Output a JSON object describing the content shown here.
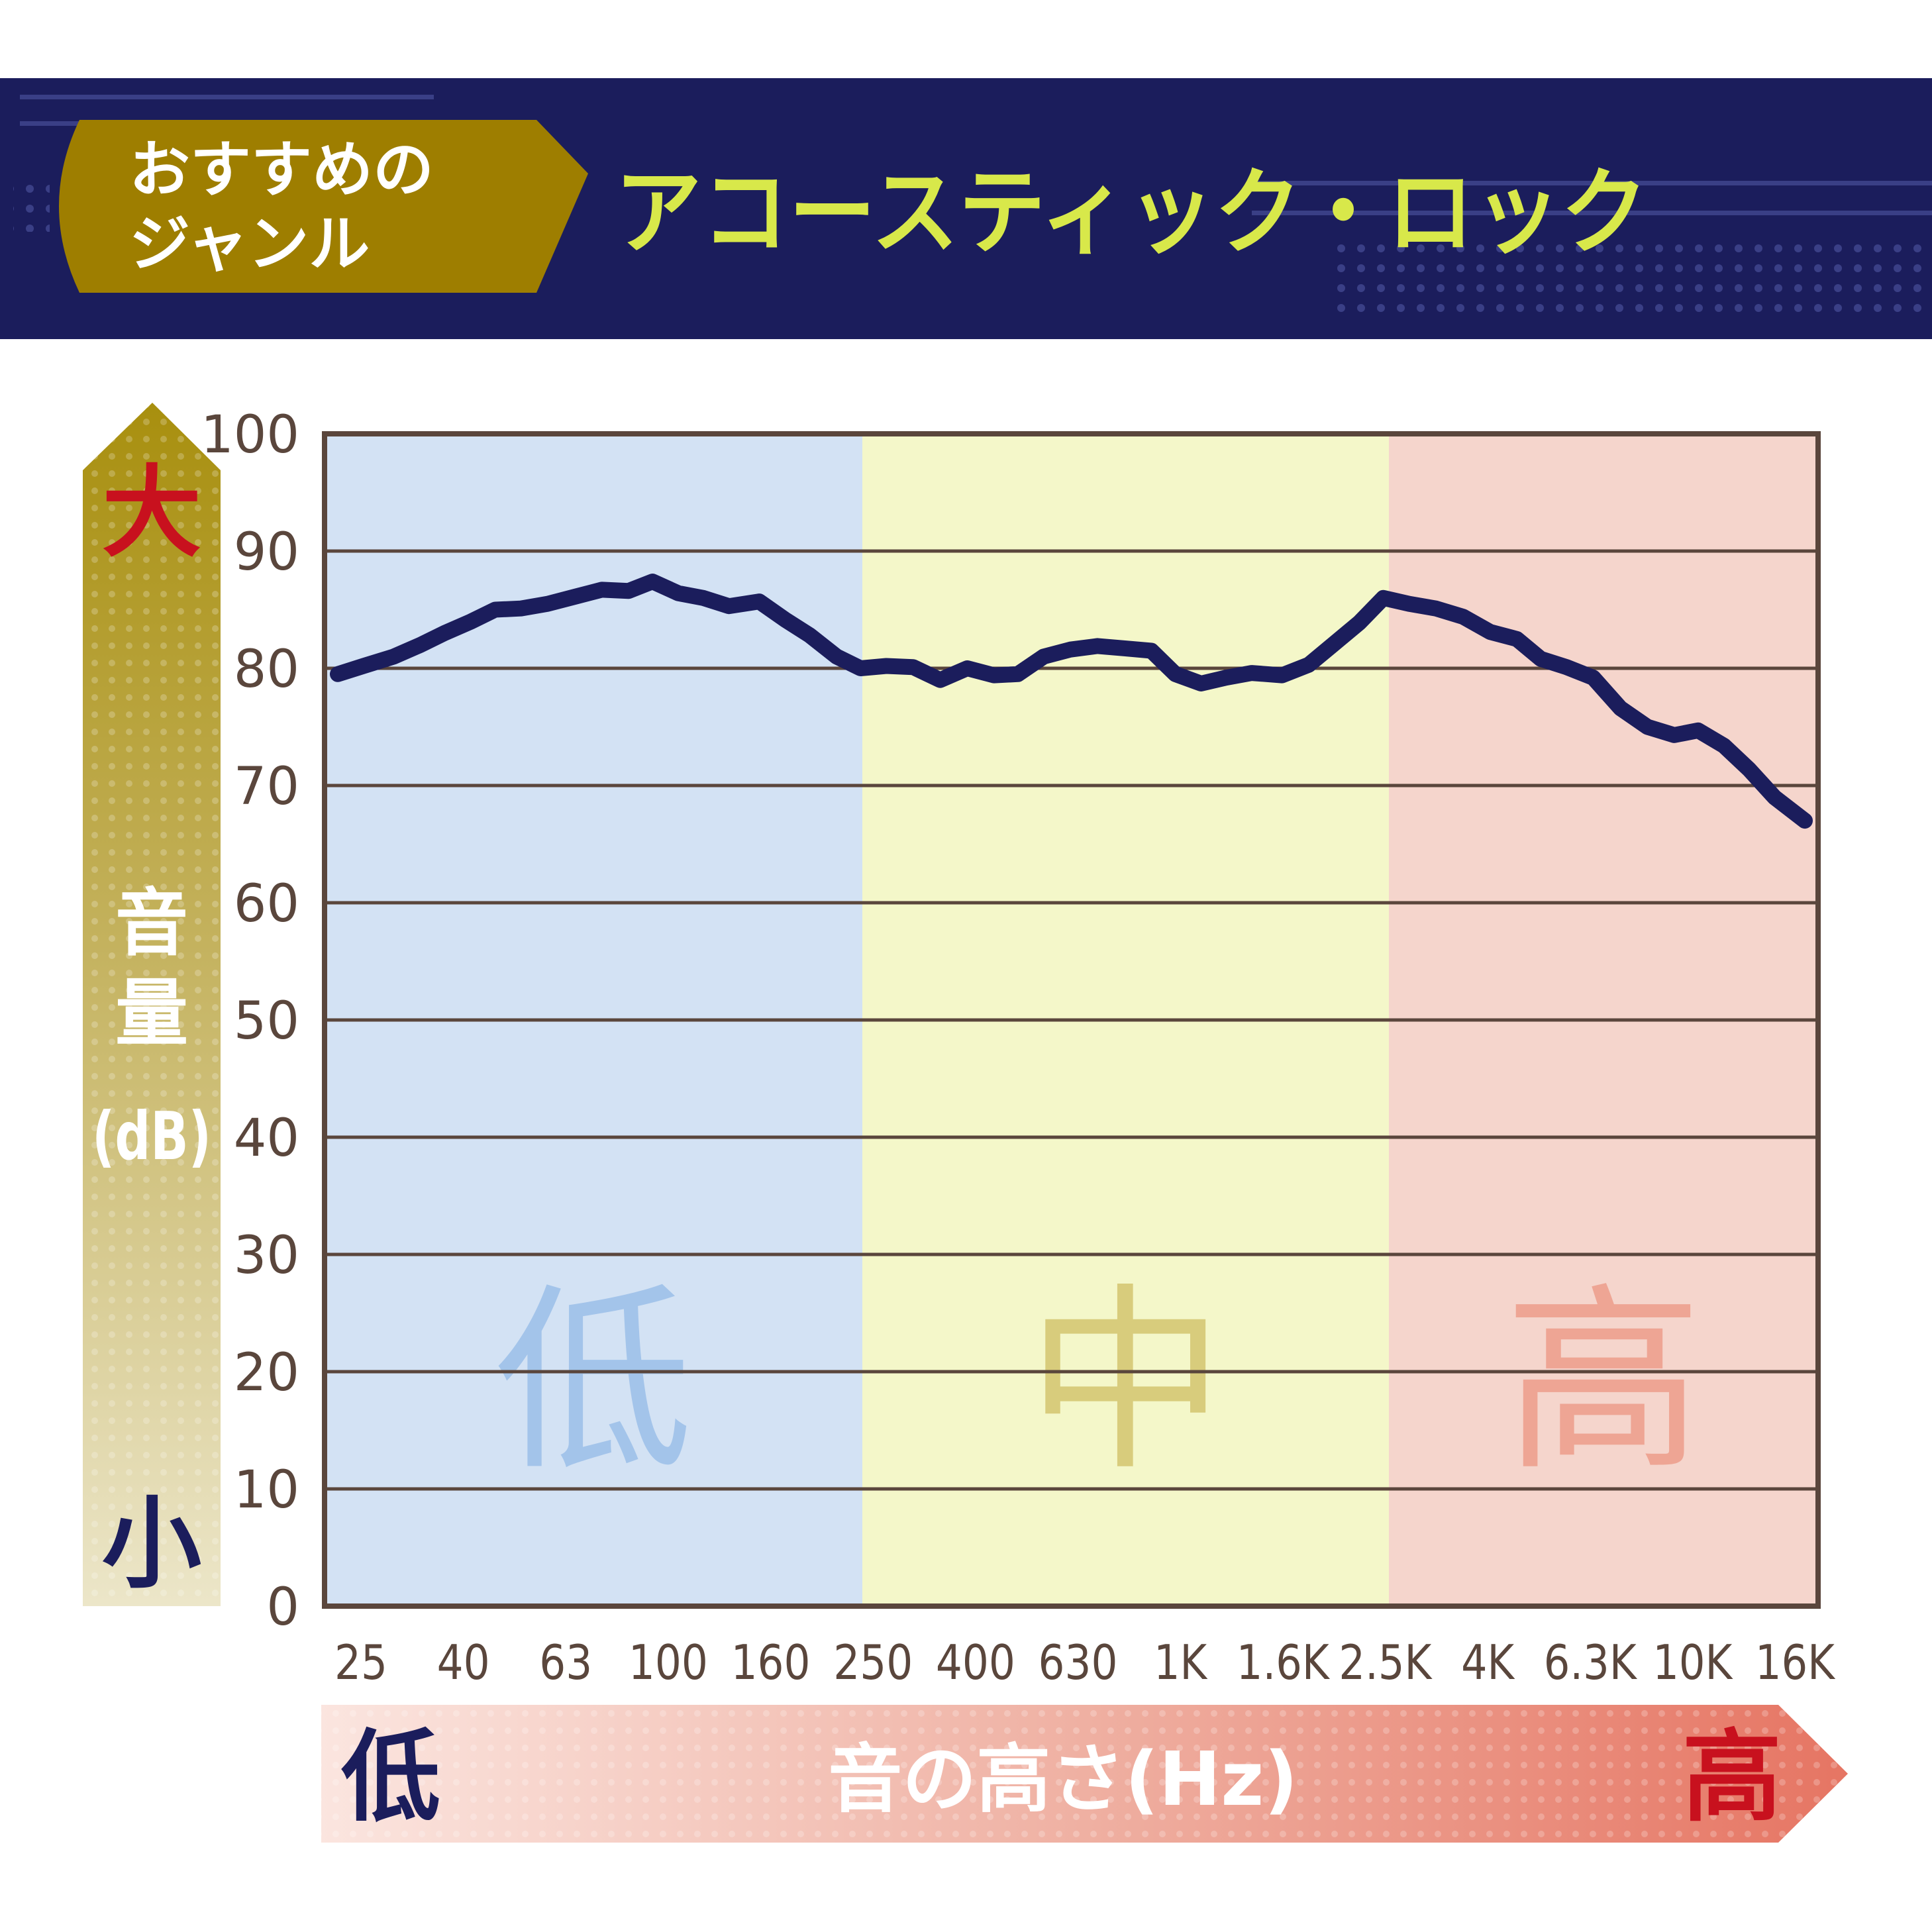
{
  "header": {
    "badge_line1": "おすすめの",
    "badge_line2": "ジャンル",
    "genre_title": "アコースティック・ロック"
  },
  "colors": {
    "navy": "#1b1d5c",
    "gold": "#9e7e00",
    "title_yellow": "#d8e84a",
    "band_low": "#d3e2f4",
    "band_mid": "#f4f7c9",
    "band_high": "#f5d5cc",
    "band_low_label": "#a3c4ea",
    "band_mid_label": "#d8cc7c",
    "band_high_label": "#eea594",
    "red": "#c8111e",
    "grid": "#5a463c",
    "line": "#1b1d5c"
  },
  "y_axis_arrow": {
    "top_label": "大",
    "bottom_label": "小",
    "label_chars": [
      "音",
      "量",
      "(dB)"
    ]
  },
  "x_axis_arrow": {
    "left_label": "低",
    "right_label": "高",
    "title": "音の高さ(Hz)"
  },
  "band_labels": [
    "低",
    "中",
    "高"
  ],
  "chart_data": {
    "type": "line",
    "x_ticks": [
      "25",
      "40",
      "63",
      "100",
      "160",
      "250",
      "400",
      "630",
      "1K",
      "1.6K",
      "2.5K",
      "4K",
      "6.3K",
      "10K",
      "16K"
    ],
    "y_ticks": [
      "0",
      "10",
      "20",
      "30",
      "40",
      "50",
      "60",
      "70",
      "80",
      "90",
      "100"
    ],
    "ylim": [
      0,
      100
    ],
    "x_scale": "log",
    "x_range_hz": [
      25,
      16000
    ],
    "bands": [
      {
        "name": "低",
        "from_hz": 25,
        "to_hz": 250
      },
      {
        "name": "中",
        "from_hz": 250,
        "to_hz": 2500
      },
      {
        "name": "高",
        "from_hz": 2500,
        "to_hz": 16000
      }
    ],
    "grid": true,
    "series": [
      {
        "x_hz": [
          25,
          28,
          32,
          36,
          40,
          45,
          50,
          56,
          63,
          71,
          80,
          90,
          100,
          112,
          125,
          140,
          160,
          180,
          200,
          225,
          250,
          280,
          315,
          355,
          400,
          450,
          500,
          560,
          630,
          710,
          800,
          900,
          1000,
          1120,
          1250,
          1400,
          1600,
          1800,
          2000,
          2250,
          2500,
          2800,
          3150,
          3550,
          4000,
          4500,
          5000,
          5600,
          6300,
          7100,
          8000,
          9000,
          10000,
          11200,
          12500,
          14000,
          16000
        ],
        "y": [
          79.5,
          80.2,
          81.0,
          82.0,
          83.0,
          84.0,
          85.0,
          85.1,
          85.5,
          86.1,
          86.7,
          86.6,
          87.4,
          86.4,
          86.0,
          85.3,
          85.7,
          84.1,
          82.8,
          81.0,
          80.0,
          80.2,
          80.1,
          79.0,
          80.0,
          79.4,
          79.5,
          81.0,
          81.6,
          81.9,
          81.7,
          81.5,
          79.5,
          78.7,
          79.2,
          79.6,
          79.4,
          80.3,
          82.0,
          83.9,
          86.0,
          85.5,
          85.1,
          84.4,
          83.1,
          82.5,
          80.8,
          80.1,
          79.2,
          76.6,
          75.0,
          74.3,
          74.7,
          73.4,
          71.4,
          69.0,
          67.0
        ]
      }
    ]
  }
}
